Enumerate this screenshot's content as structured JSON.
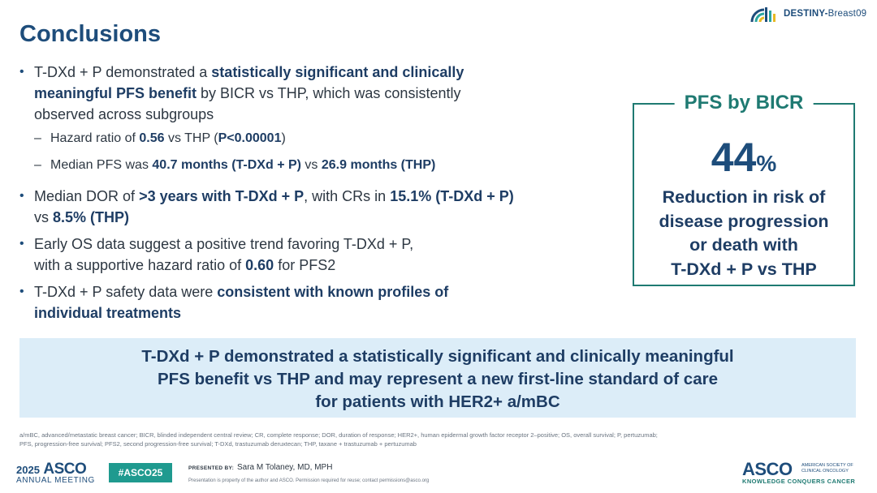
{
  "title": "Conclusions",
  "brand": {
    "prefix": "DESTINY-",
    "suffix": "Breast09"
  },
  "bullets": {
    "b1": {
      "l1a": "T-DXd + P demonstrated a ",
      "l1b": "statistically significant and clinically",
      "l2a": "meaningful PFS benefit",
      "l2b": " by BICR vs THP, which was consistently",
      "l3": "observed across subgroups"
    },
    "s1": {
      "a": "Hazard ratio of ",
      "b": "0.56",
      "c": " vs THP (",
      "d": "P<0.00001",
      "e": ")"
    },
    "s2": {
      "a": "Median PFS was ",
      "b": "40.7 months (T-DXd + P)",
      "c": " vs ",
      "d": "26.9 months (THP)"
    },
    "b2": {
      "l1a": "Median DOR of ",
      "l1b": ">3 years with T-DXd + P",
      "l1c": ", with CRs in ",
      "l1d": "15.1% (T-DXd + P)",
      "l2a": "vs ",
      "l2b": "8.5% (THP)"
    },
    "b3": {
      "l1": "Early OS data suggest a positive trend favoring T-DXd + P,",
      "l2a": "with a supportive hazard ratio of ",
      "l2b": "0.60",
      "l2c": " for PFS2"
    },
    "b4": {
      "l1a": "T-DXd + P safety data were ",
      "l1b": "consistent with known profiles of",
      "l2": "individual treatments"
    }
  },
  "pfs_box": {
    "title": "PFS by BICR",
    "number": "44",
    "percent": "%",
    "desc": [
      "Reduction in risk of",
      "disease progression",
      "or death with",
      "T-DXd + P vs THP"
    ]
  },
  "banner": [
    "T-DXd + P demonstrated a statistically significant and clinically meaningful",
    "PFS benefit vs THP and may represent a new first-line standard of care",
    "for patients with HER2+ a/mBC"
  ],
  "abbreviations": [
    "a/mBC, advanced/metastatic breast cancer; BICR, blinded independent central review; CR, complete response; DOR, duration of response; HER2+, human epidermal growth factor receptor 2–positive; OS, overall survival; P, pertuzumab;",
    "PFS, progression-free survival; PFS2, second progression-free survival; T-DXd, trastuzumab deruxtecan; THP, taxane + trastuzumab + pertuzumab"
  ],
  "footer": {
    "year": "2025",
    "asco": "ASCO",
    "meeting": "ANNUAL MEETING",
    "hashtag": "#ASCO25",
    "presented_by": "PRESENTED BY:",
    "presenter": "Sara M Tolaney, MD, MPH",
    "property_note": "Presentation is property of the author and ASCO. Permission required for reuse; contact permissions@asco.org",
    "asco_logo": "ASCO",
    "society": "AMERICAN SOCIETY OF CLINICAL ONCOLOGY",
    "tagline": "KNOWLEDGE CONQUERS CANCER"
  },
  "colors": {
    "navy": "#1e4d7b",
    "teal": "#1f7a72",
    "banner_bg": "#dcedf8",
    "hashtag_bg": "#1f9a8f"
  }
}
